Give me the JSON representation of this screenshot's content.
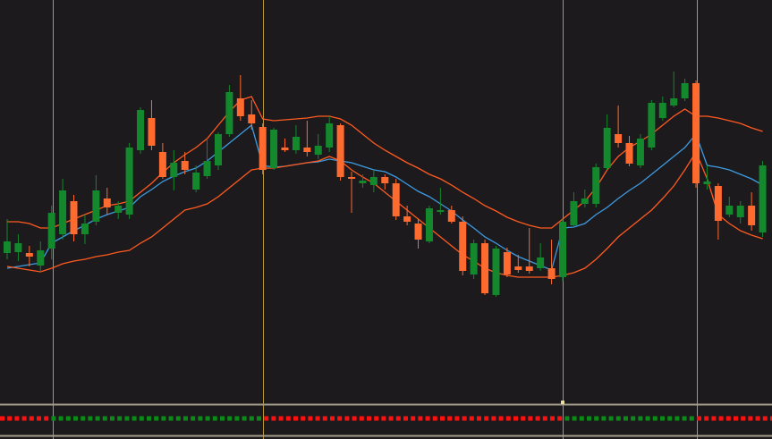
{
  "chart_data": {
    "type": "candlestick",
    "ylim": [
      0,
      450
    ],
    "up_color": "#13882c",
    "down_color": "#ff6a2e",
    "open": [
      167,
      168,
      167,
      153,
      172,
      188,
      225,
      188,
      202,
      228,
      212,
      210,
      282,
      318,
      280,
      252,
      270,
      238,
      253,
      265,
      300,
      340,
      322,
      308,
      262,
      285,
      282,
      285,
      277,
      285,
      310,
      252,
      245,
      243,
      252,
      245,
      208,
      200,
      180,
      213,
      215,
      202,
      143,
      178,
      120,
      168,
      152,
      152,
      150,
      150,
      140,
      198,
      222,
      222,
      262,
      300,
      290,
      265,
      285,
      318,
      332,
      340,
      357,
      244,
      242,
      210,
      207,
      220,
      190
    ],
    "high": [
      205,
      188,
      175,
      180,
      220,
      250,
      232,
      210,
      254,
      240,
      225,
      290,
      330,
      338,
      290,
      282,
      280,
      265,
      295,
      302,
      355,
      366,
      338,
      312,
      307,
      295,
      310,
      315,
      300,
      320,
      312,
      258,
      255,
      260,
      255,
      250,
      220,
      205,
      220,
      240,
      220,
      208,
      182,
      182,
      175,
      173,
      165,
      195,
      178,
      182,
      205,
      235,
      238,
      267,
      322,
      332,
      298,
      300,
      338,
      342,
      370,
      362,
      360,
      265,
      245,
      230,
      225,
      235,
      270
    ],
    "low": [
      160,
      158,
      152,
      145,
      160,
      182,
      180,
      177,
      198,
      210,
      205,
      205,
      278,
      282,
      250,
      237,
      255,
      235,
      250,
      260,
      297,
      315,
      305,
      255,
      260,
      280,
      278,
      275,
      272,
      280,
      248,
      212,
      240,
      235,
      238,
      204,
      198,
      172,
      178,
      210,
      200,
      142,
      138,
      120,
      118,
      140,
      145,
      144,
      147,
      132,
      135,
      195,
      218,
      218,
      260,
      285,
      264,
      262,
      282,
      315,
      330,
      337,
      240,
      238,
      182,
      207,
      200,
      192,
      185
    ],
    "close": [
      180,
      178,
      163,
      170,
      212,
      237,
      188,
      200,
      237,
      218,
      220,
      285,
      327,
      287,
      252,
      268,
      260,
      257,
      270,
      300,
      347,
      320,
      312,
      260,
      305,
      282,
      297,
      280,
      287,
      312,
      252,
      250,
      248,
      252,
      245,
      208,
      202,
      182,
      217,
      215,
      202,
      147,
      178,
      122,
      172,
      143,
      148,
      147,
      162,
      138,
      202,
      225,
      228,
      263,
      307,
      290,
      267,
      295,
      335,
      335,
      340,
      357,
      245,
      247,
      203,
      220,
      220,
      198,
      265
    ],
    "series": [
      {
        "color": "#ff5a1f",
        "values": [
          202,
          202,
          200,
          195,
          195,
          200,
          205,
          210,
          215,
          220,
          222,
          225,
          235,
          245,
          257,
          268,
          277,
          285,
          295,
          310,
          325,
          338,
          342,
          317,
          315,
          316,
          317,
          318,
          320,
          320,
          317,
          310,
          300,
          290,
          282,
          275,
          268,
          262,
          255,
          250,
          243,
          235,
          228,
          220,
          214,
          207,
          202,
          198,
          195,
          195,
          205,
          215,
          225,
          240,
          260,
          275,
          285,
          292,
          300,
          310,
          320,
          328,
          320,
          320,
          318,
          315,
          312,
          307,
          303
        ]
      },
      {
        "color": "#3d9be0",
        "values": [
          150,
          152,
          154,
          156,
          178,
          185,
          192,
          198,
          205,
          210,
          214,
          218,
          230,
          238,
          247,
          253,
          258,
          262,
          270,
          280,
          290,
          300,
          310,
          265,
          263,
          264,
          266,
          268,
          269,
          272,
          270,
          268,
          264,
          260,
          258,
          252,
          244,
          236,
          230,
          222,
          214,
          204,
          195,
          185,
          178,
          170,
          163,
          158,
          153,
          148,
          195,
          196,
          200,
          210,
          218,
          228,
          237,
          245,
          255,
          265,
          275,
          285,
          300,
          265,
          263,
          260,
          255,
          250,
          243
        ]
      },
      {
        "color": "#ff5a1f",
        "values": [
          152,
          150,
          148,
          146,
          150,
          155,
          158,
          160,
          163,
          165,
          168,
          170,
          178,
          185,
          195,
          205,
          215,
          218,
          222,
          230,
          240,
          250,
          260,
          262,
          262,
          264,
          266,
          268,
          270,
          275,
          270,
          260,
          252,
          245,
          235,
          225,
          215,
          205,
          195,
          185,
          175,
          165,
          158,
          150,
          145,
          142,
          140,
          140,
          140,
          140,
          142,
          145,
          150,
          160,
          172,
          185,
          195,
          205,
          215,
          228,
          242,
          260,
          280,
          250,
          210,
          200,
          192,
          187,
          183
        ]
      }
    ]
  }
}
